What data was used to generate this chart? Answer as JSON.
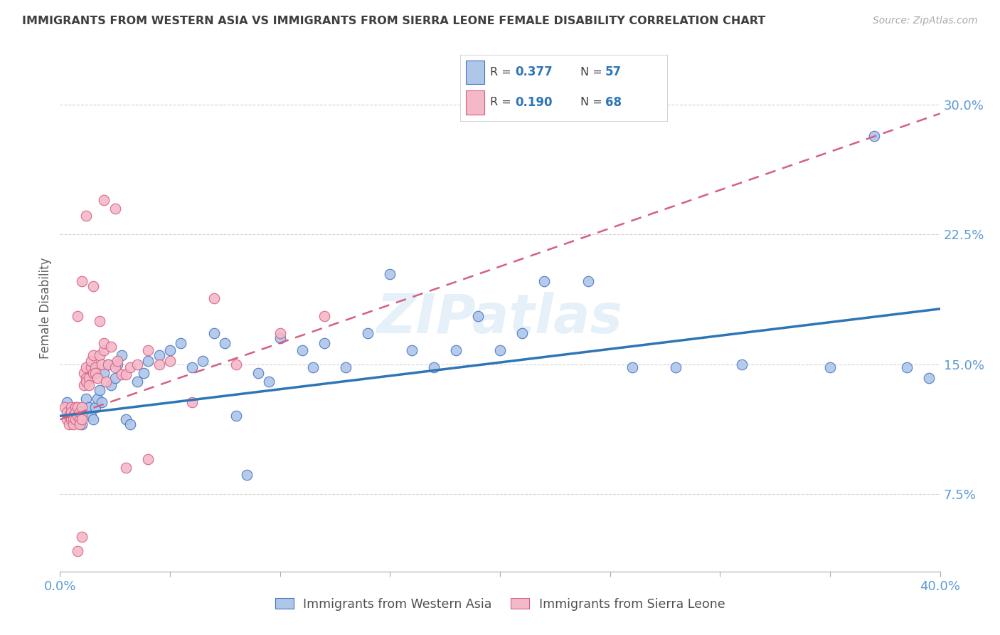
{
  "title": "IMMIGRANTS FROM WESTERN ASIA VS IMMIGRANTS FROM SIERRA LEONE FEMALE DISABILITY CORRELATION CHART",
  "source": "Source: ZipAtlas.com",
  "ylabel": "Female Disability",
  "yticks": [
    "7.5%",
    "15.0%",
    "22.5%",
    "30.0%"
  ],
  "ytick_vals": [
    0.075,
    0.15,
    0.225,
    0.3
  ],
  "xlim": [
    0.0,
    0.4
  ],
  "ylim": [
    0.03,
    0.335
  ],
  "series1_label": "Immigrants from Western Asia",
  "series2_label": "Immigrants from Sierra Leone",
  "color_blue_fill": "#aec6e8",
  "color_blue_edge": "#4472c4",
  "color_blue_line": "#2e75b6",
  "color_pink_fill": "#f4b8c8",
  "color_pink_edge": "#d46080",
  "color_pink_line": "#d46080",
  "watermark": "ZIPatlas",
  "title_color": "#3f3f3f",
  "axis_label_color": "#5b9bd5",
  "ylabel_color": "#606060",
  "trend1_start_y": 0.12,
  "trend1_end_y": 0.182,
  "trend2_start_y": 0.118,
  "trend2_end_y": 0.295,
  "series1_x": [
    0.003,
    0.005,
    0.007,
    0.009,
    0.01,
    0.012,
    0.013,
    0.014,
    0.015,
    0.016,
    0.017,
    0.018,
    0.019,
    0.02,
    0.022,
    0.023,
    0.025,
    0.026,
    0.028,
    0.03,
    0.032,
    0.035,
    0.038,
    0.04,
    0.045,
    0.05,
    0.055,
    0.06,
    0.065,
    0.07,
    0.075,
    0.08,
    0.085,
    0.09,
    0.095,
    0.1,
    0.11,
    0.115,
    0.12,
    0.13,
    0.14,
    0.15,
    0.16,
    0.17,
    0.18,
    0.19,
    0.2,
    0.21,
    0.22,
    0.24,
    0.26,
    0.28,
    0.31,
    0.35,
    0.37,
    0.385,
    0.395
  ],
  "series1_y": [
    0.128,
    0.12,
    0.118,
    0.122,
    0.115,
    0.13,
    0.125,
    0.12,
    0.118,
    0.125,
    0.13,
    0.135,
    0.128,
    0.145,
    0.15,
    0.138,
    0.142,
    0.15,
    0.155,
    0.118,
    0.115,
    0.14,
    0.145,
    0.152,
    0.155,
    0.158,
    0.162,
    0.148,
    0.152,
    0.168,
    0.162,
    0.12,
    0.086,
    0.145,
    0.14,
    0.165,
    0.158,
    0.148,
    0.162,
    0.148,
    0.168,
    0.202,
    0.158,
    0.148,
    0.158,
    0.178,
    0.158,
    0.168,
    0.198,
    0.198,
    0.148,
    0.148,
    0.15,
    0.148,
    0.282,
    0.148,
    0.142
  ],
  "series2_x": [
    0.002,
    0.003,
    0.003,
    0.004,
    0.004,
    0.005,
    0.005,
    0.005,
    0.006,
    0.006,
    0.006,
    0.007,
    0.007,
    0.007,
    0.008,
    0.008,
    0.009,
    0.009,
    0.009,
    0.01,
    0.01,
    0.01,
    0.011,
    0.011,
    0.012,
    0.012,
    0.012,
    0.013,
    0.013,
    0.014,
    0.014,
    0.015,
    0.015,
    0.016,
    0.016,
    0.017,
    0.018,
    0.019,
    0.02,
    0.02,
    0.021,
    0.022,
    0.023,
    0.025,
    0.026,
    0.028,
    0.03,
    0.032,
    0.035,
    0.04,
    0.045,
    0.05,
    0.06,
    0.07,
    0.08,
    0.1,
    0.12,
    0.02,
    0.012,
    0.015,
    0.008,
    0.01,
    0.018,
    0.025,
    0.03,
    0.04,
    0.008,
    0.01
  ],
  "series2_y": [
    0.125,
    0.118,
    0.122,
    0.115,
    0.12,
    0.118,
    0.125,
    0.122,
    0.12,
    0.118,
    0.115,
    0.125,
    0.118,
    0.122,
    0.125,
    0.12,
    0.118,
    0.122,
    0.115,
    0.12,
    0.125,
    0.118,
    0.145,
    0.138,
    0.142,
    0.148,
    0.14,
    0.142,
    0.138,
    0.148,
    0.152,
    0.145,
    0.155,
    0.148,
    0.145,
    0.142,
    0.155,
    0.15,
    0.158,
    0.162,
    0.14,
    0.15,
    0.16,
    0.148,
    0.152,
    0.144,
    0.144,
    0.148,
    0.15,
    0.158,
    0.15,
    0.152,
    0.128,
    0.188,
    0.15,
    0.168,
    0.178,
    0.245,
    0.236,
    0.195,
    0.178,
    0.198,
    0.175,
    0.24,
    0.09,
    0.095,
    0.042,
    0.05
  ]
}
